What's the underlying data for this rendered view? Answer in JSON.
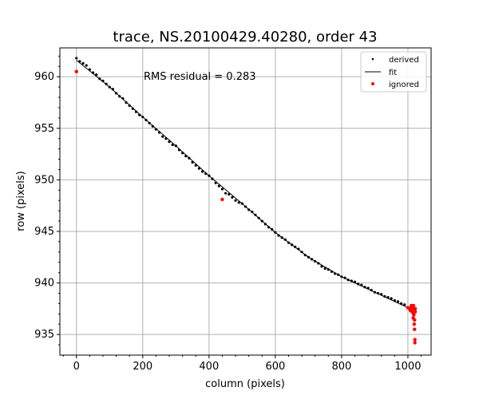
{
  "chart_data": {
    "type": "scatter",
    "title": "trace, NS.20100429.40280, order 43",
    "xlabel": "column (pixels)",
    "ylabel": "row (pixels)",
    "annotation": "RMS residual = 0.283",
    "xlim": [
      -50,
      1070
    ],
    "ylim": [
      933,
      962.8
    ],
    "x_ticks": [
      0,
      200,
      400,
      600,
      800,
      1000
    ],
    "y_ticks": [
      935,
      940,
      945,
      950,
      955,
      960
    ],
    "x_tick_labels": [
      "0",
      "200",
      "400",
      "600",
      "800",
      "1000"
    ],
    "y_tick_labels": [
      "935",
      "940",
      "945",
      "950",
      "955",
      "960"
    ],
    "grid": true,
    "legend_position": "top-right",
    "legend": [
      {
        "label": "derived",
        "marker": "dot",
        "color": "#000000"
      },
      {
        "label": "fit",
        "marker": "line",
        "color": "#000000"
      },
      {
        "label": "ignored",
        "marker": "dot",
        "color": "#ff0000"
      }
    ],
    "fit": {
      "name": "fit",
      "x": [
        0,
        100,
        200,
        300,
        400,
        500,
        600,
        700,
        800,
        900,
        1000,
        1020
      ],
      "y": [
        961.6,
        959.0,
        956.1,
        953.3,
        950.4,
        947.7,
        944.9,
        942.5,
        940.6,
        939.1,
        937.6,
        937.3
      ]
    },
    "derived": {
      "name": "derived",
      "x": [
        0,
        10,
        20,
        30,
        40,
        50,
        60,
        70,
        80,
        90,
        100,
        110,
        120,
        130,
        140,
        150,
        160,
        170,
        180,
        190,
        200,
        210,
        220,
        230,
        240,
        250,
        260,
        270,
        280,
        290,
        300,
        310,
        320,
        330,
        340,
        350,
        360,
        370,
        380,
        390,
        400,
        410,
        420,
        430,
        440,
        450,
        460,
        470,
        480,
        490,
        500,
        510,
        520,
        530,
        540,
        550,
        560,
        570,
        580,
        590,
        600,
        610,
        620,
        630,
        640,
        650,
        660,
        670,
        680,
        690,
        700,
        710,
        720,
        730,
        740,
        750,
        760,
        770,
        780,
        790,
        800,
        810,
        820,
        830,
        840,
        850,
        860,
        870,
        880,
        890,
        900,
        910,
        920,
        930,
        940,
        950,
        960,
        970,
        980,
        990,
        1000
      ],
      "y": [
        961.8,
        961.5,
        961.3,
        961.1,
        960.7,
        960.4,
        960.2,
        959.8,
        959.6,
        959.3,
        959.0,
        958.8,
        958.4,
        958.1,
        957.9,
        957.5,
        957.2,
        956.9,
        956.6,
        956.3,
        956.1,
        955.8,
        955.5,
        955.2,
        954.9,
        954.6,
        954.2,
        954.0,
        953.7,
        953.4,
        953.3,
        952.9,
        952.6,
        952.3,
        952.1,
        951.7,
        951.4,
        951.1,
        950.8,
        950.6,
        950.4,
        950.1,
        949.7,
        949.4,
        949.1,
        948.7,
        948.6,
        948.3,
        948.0,
        947.8,
        947.7,
        947.4,
        947.1,
        946.9,
        946.6,
        946.3,
        946.0,
        945.7,
        945.4,
        945.2,
        944.9,
        944.6,
        944.4,
        944.2,
        943.9,
        943.7,
        943.5,
        943.3,
        943.0,
        942.7,
        942.5,
        942.3,
        942.1,
        941.9,
        941.6,
        941.4,
        941.3,
        941.1,
        940.9,
        940.8,
        940.6,
        940.5,
        940.3,
        940.2,
        940.1,
        939.9,
        939.8,
        939.6,
        939.5,
        939.3,
        939.1,
        939.0,
        938.9,
        938.7,
        938.6,
        938.5,
        938.3,
        938.2,
        938.0,
        937.9,
        937.6
      ]
    },
    "ignored": {
      "name": "ignored",
      "x": [
        0,
        440,
        1000,
        1005,
        1008,
        1010,
        1012,
        1014,
        1015,
        1016,
        1017,
        1018,
        1019,
        1020,
        1020,
        1021,
        1021,
        1022,
        1022
      ],
      "y": [
        960.5,
        948.1,
        937.6,
        937.5,
        937.3,
        937.8,
        937.4,
        937.6,
        937.1,
        936.6,
        937.8,
        936.9,
        936.0,
        936.4,
        935.5,
        934.5,
        934.2,
        937.2,
        937.5
      ]
    }
  }
}
